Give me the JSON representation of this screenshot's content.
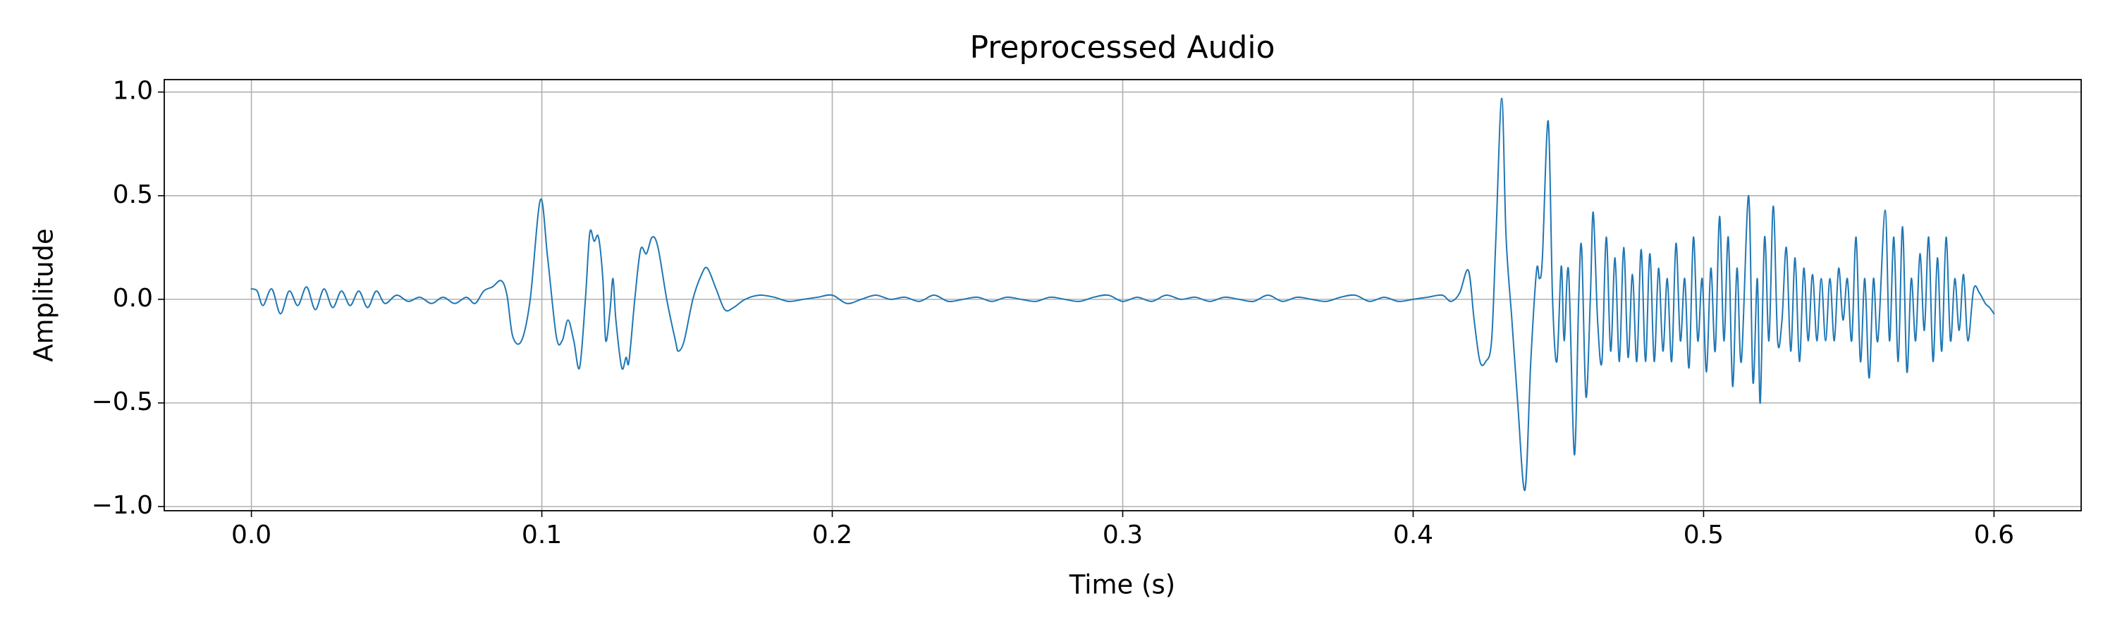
{
  "chart_data": {
    "type": "line",
    "title": "Preprocessed Audio",
    "x_label": "Time (s)",
    "y_label": "Amplitude",
    "grid": true,
    "xlim": [
      -0.03,
      0.63
    ],
    "ylim": [
      -1.02,
      1.06
    ],
    "xticks": [
      {
        "value": 0,
        "label": "0.0"
      },
      0.1,
      0.2,
      0.3,
      0.4,
      0.5,
      0.6
    ],
    "yticks": [
      {
        "value": -1,
        "label": "−1.0"
      },
      {
        "value": -0.5,
        "label": "−0.5"
      },
      {
        "value": 0,
        "label": "0.0"
      },
      0.5,
      {
        "value": 1,
        "label": "1.0"
      }
    ],
    "x": [
      0,
      0.002,
      0.004,
      0.007,
      0.01,
      0.013,
      0.016,
      0.019,
      0.022,
      0.025,
      0.028,
      0.031,
      0.034,
      0.037,
      0.04,
      0.043,
      0.046,
      0.05,
      0.054,
      0.058,
      0.062,
      0.066,
      0.07,
      0.074,
      0.077,
      0.08,
      0.083,
      0.086,
      0.088,
      0.09,
      0.093,
      0.096,
      0.0995,
      0.102,
      0.105,
      0.107,
      0.109,
      0.111,
      0.113,
      0.115,
      0.1165,
      0.118,
      0.1195,
      0.121,
      0.122,
      0.1235,
      0.1245,
      0.1255,
      0.1275,
      0.129,
      0.13,
      0.132,
      0.134,
      0.136,
      0.138,
      0.14,
      0.143,
      0.146,
      0.147,
      0.149,
      0.152,
      0.155,
      0.157,
      0.16,
      0.163,
      0.166,
      0.17,
      0.175,
      0.18,
      0.185,
      0.19,
      0.195,
      0.2,
      0.205,
      0.21,
      0.215,
      0.22,
      0.225,
      0.23,
      0.235,
      0.24,
      0.245,
      0.25,
      0.255,
      0.26,
      0.265,
      0.27,
      0.275,
      0.28,
      0.285,
      0.29,
      0.295,
      0.3,
      0.305,
      0.31,
      0.315,
      0.32,
      0.325,
      0.33,
      0.335,
      0.34,
      0.345,
      0.35,
      0.355,
      0.36,
      0.365,
      0.37,
      0.375,
      0.38,
      0.385,
      0.39,
      0.395,
      0.4,
      0.405,
      0.41,
      0.413,
      0.416,
      0.419,
      0.421,
      0.423,
      0.425,
      0.427,
      0.4285,
      0.4305,
      0.432,
      0.434,
      0.436,
      0.4385,
      0.4405,
      0.4425,
      0.4435,
      0.4445,
      0.4465,
      0.448,
      0.4495,
      0.451,
      0.452,
      0.4535,
      0.4555,
      0.457,
      0.458,
      0.4595,
      0.461,
      0.462,
      0.4635,
      0.465,
      0.4665,
      0.468,
      0.4695,
      0.471,
      0.4725,
      0.474,
      0.4755,
      0.477,
      0.4785,
      0.48,
      0.4815,
      0.483,
      0.4845,
      0.486,
      0.4875,
      0.489,
      0.4905,
      0.492,
      0.4935,
      0.495,
      0.4965,
      0.498,
      0.4995,
      0.501,
      0.5025,
      0.504,
      0.5055,
      0.507,
      0.5085,
      0.51,
      0.5115,
      0.513,
      0.5155,
      0.517,
      0.5185,
      0.5195,
      0.521,
      0.5225,
      0.524,
      0.5255,
      0.527,
      0.5285,
      0.53,
      0.5315,
      0.533,
      0.5345,
      0.536,
      0.5375,
      0.539,
      0.5405,
      0.542,
      0.5435,
      0.545,
      0.5465,
      0.548,
      0.5495,
      0.551,
      0.5525,
      0.554,
      0.5555,
      0.557,
      0.5585,
      0.56,
      0.5625,
      0.564,
      0.5655,
      0.567,
      0.5685,
      0.57,
      0.5715,
      0.573,
      0.5745,
      0.576,
      0.5775,
      0.579,
      0.5805,
      0.582,
      0.5835,
      0.585,
      0.5865,
      0.588,
      0.5895,
      0.591,
      0.593,
      0.595,
      0.597,
      0.5985,
      0.6
    ],
    "series": [
      {
        "color": "#1f77b4",
        "values": [
          0.05,
          0.04,
          -0.03,
          0.05,
          -0.07,
          0.04,
          -0.03,
          0.06,
          -0.05,
          0.05,
          -0.04,
          0.04,
          -0.03,
          0.04,
          -0.04,
          0.04,
          -0.02,
          0.02,
          -0.01,
          0.01,
          -0.02,
          0.01,
          -0.02,
          0.01,
          -0.02,
          0.04,
          0.06,
          0.09,
          0.02,
          -0.18,
          -0.2,
          0.0,
          0.48,
          0.2,
          -0.18,
          -0.2,
          -0.1,
          -0.2,
          -0.33,
          0.0,
          0.32,
          0.28,
          0.3,
          0.1,
          -0.2,
          -0.05,
          0.1,
          -0.1,
          -0.33,
          -0.28,
          -0.3,
          0.0,
          0.24,
          0.22,
          0.3,
          0.25,
          0.0,
          -0.2,
          -0.25,
          -0.2,
          0.0,
          0.12,
          0.15,
          0.05,
          -0.05,
          -0.04,
          0.0,
          0.02,
          0.01,
          -0.01,
          0.0,
          0.01,
          0.02,
          -0.02,
          0.0,
          0.02,
          0.0,
          0.01,
          -0.01,
          0.02,
          -0.01,
          0.0,
          0.01,
          -0.01,
          0.01,
          0.0,
          -0.01,
          0.01,
          0.0,
          -0.01,
          0.01,
          0.02,
          -0.01,
          0.01,
          -0.01,
          0.02,
          0.0,
          0.01,
          -0.01,
          0.01,
          0.0,
          -0.01,
          0.02,
          -0.01,
          0.01,
          0.0,
          -0.01,
          0.01,
          0.02,
          -0.01,
          0.01,
          -0.01,
          0.0,
          0.01,
          0.02,
          -0.01,
          0.03,
          0.14,
          -0.1,
          -0.3,
          -0.3,
          -0.2,
          0.3,
          0.97,
          0.3,
          -0.1,
          -0.5,
          -0.92,
          -0.3,
          0.14,
          0.1,
          0.2,
          0.86,
          0.0,
          -0.3,
          0.16,
          -0.2,
          0.14,
          -0.75,
          0.0,
          0.25,
          -0.47,
          0.0,
          0.42,
          -0.1,
          -0.3,
          0.3,
          -0.25,
          0.2,
          -0.3,
          0.25,
          -0.28,
          0.12,
          -0.3,
          0.24,
          -0.3,
          0.22,
          -0.3,
          0.15,
          -0.25,
          0.1,
          -0.3,
          0.27,
          -0.2,
          0.1,
          -0.33,
          0.3,
          -0.2,
          0.1,
          -0.35,
          0.15,
          -0.25,
          0.4,
          -0.2,
          0.3,
          -0.42,
          0.15,
          -0.3,
          0.5,
          -0.4,
          0.1,
          -0.5,
          0.3,
          -0.2,
          0.45,
          -0.2,
          -0.1,
          0.25,
          -0.25,
          0.2,
          -0.3,
          0.15,
          -0.2,
          0.12,
          -0.2,
          0.1,
          -0.2,
          0.1,
          -0.2,
          0.15,
          -0.1,
          0.1,
          -0.2,
          0.3,
          -0.3,
          0.1,
          -0.38,
          0.1,
          -0.2,
          0.43,
          -0.2,
          0.3,
          -0.3,
          0.35,
          -0.35,
          0.1,
          -0.2,
          0.22,
          -0.15,
          0.3,
          -0.3,
          0.2,
          -0.25,
          0.3,
          -0.2,
          0.1,
          -0.15,
          0.12,
          -0.2,
          0.05,
          0.03,
          -0.02,
          -0.04,
          -0.07
        ]
      }
    ]
  }
}
